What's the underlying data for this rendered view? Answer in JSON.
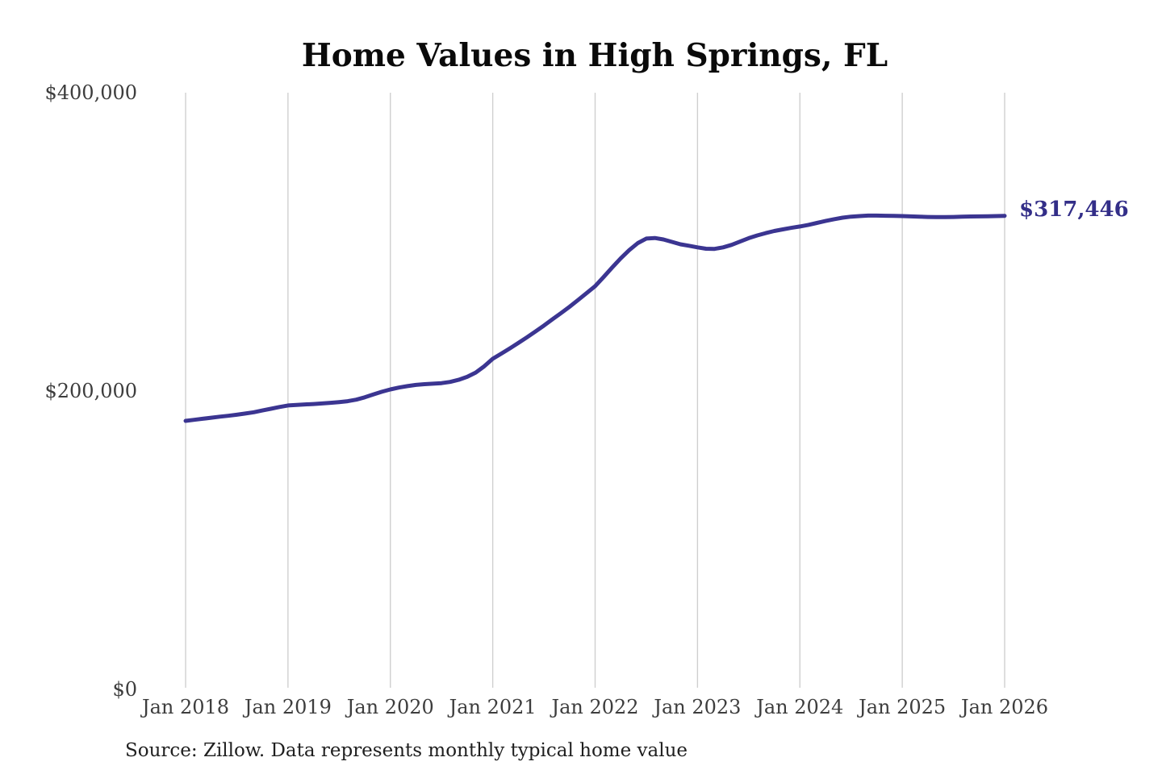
{
  "chart": {
    "title": "Home Values in High Springs, FL",
    "source_note": "Source: Zillow. Data represents monthly typical home value",
    "end_label": "$317,446",
    "colors": {
      "line": "#3b3591",
      "end_label": "#332e88",
      "gridline": "#cfcfcf",
      "axis_text": "#3d3d3d",
      "title_text": "#0a0a0a",
      "source_text": "#1f1f1f",
      "background": "#ffffff"
    }
  },
  "chart_data": {
    "type": "line",
    "title": "Home Values in High Springs, FL",
    "xlabel": "",
    "ylabel": "",
    "x_start": "Jan 2018",
    "x_end": "Jan 2026",
    "frequency": "monthly",
    "x_tick_labels": [
      "Jan 2018",
      "Jan 2019",
      "Jan 2020",
      "Jan 2021",
      "Jan 2022",
      "Jan 2023",
      "Jan 2024",
      "Jan 2025",
      "Jan 2026"
    ],
    "y_tick_labels": [
      "$0",
      "$200,000",
      "$400,000"
    ],
    "y_tick_values": [
      0,
      200000,
      400000
    ],
    "ylim": [
      0,
      400000
    ],
    "grid": "vertical-only",
    "legend": "none",
    "final_value": 317446,
    "final_value_label": "$317,446",
    "source": "Source: Zillow. Data represents monthly typical home value",
    "series": [
      {
        "name": "typical_home_value",
        "values": [
          180000,
          180700,
          181400,
          182100,
          182800,
          183400,
          184100,
          184900,
          185800,
          187000,
          188100,
          189300,
          190300,
          190700,
          191000,
          191300,
          191700,
          192100,
          192600,
          193200,
          194200,
          195800,
          197700,
          199500,
          201100,
          202300,
          203300,
          204100,
          204600,
          204900,
          205300,
          206100,
          207500,
          209500,
          212400,
          216600,
          221600,
          225100,
          228600,
          232200,
          236000,
          239900,
          243900,
          248100,
          252200,
          256500,
          261000,
          265600,
          270300,
          276500,
          282800,
          289000,
          294500,
          299200,
          302200,
          302600,
          301600,
          300000,
          298400,
          297400,
          296300,
          295400,
          295300,
          296300,
          298000,
          300200,
          302500,
          304300,
          305900,
          307300,
          308400,
          309400,
          310300,
          311400,
          312700,
          314000,
          315200,
          316200,
          316900,
          317300,
          317600,
          317600,
          317500,
          317400,
          317300,
          317100,
          316900,
          316700,
          316600,
          316600,
          316700,
          316900,
          317000,
          317100,
          317200,
          317300,
          317446
        ]
      }
    ]
  }
}
